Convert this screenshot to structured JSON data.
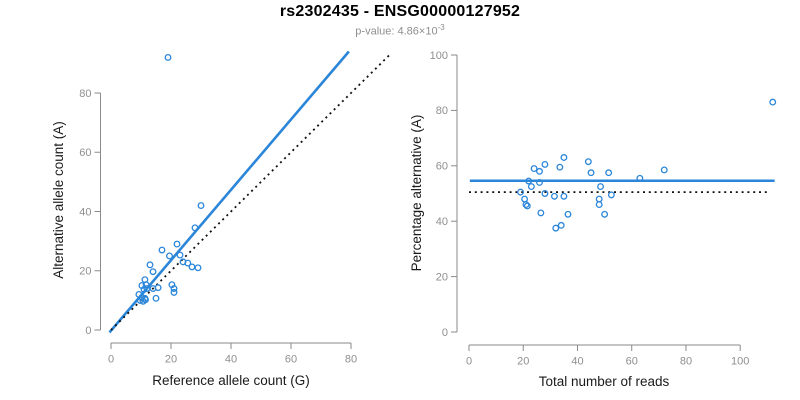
{
  "header": {
    "title": "rs2302435 - ENSG00000127952",
    "pvalue_text": "p-value: 4.86×10",
    "pvalue_exponent": "-3"
  },
  "colors": {
    "blue": "#2b86d9",
    "dotted_black": "#111111",
    "axis_gray": "#8a8a8a",
    "tick_label_gray": "#8f8f8f",
    "axis_title": "#1a1a1a"
  },
  "chart_data": [
    {
      "type": "scatter",
      "panel": "allele-counts",
      "xlabel": "Reference allele count (G)",
      "ylabel": "Alternative allele count (A)",
      "xticks": [
        0,
        20,
        40,
        60,
        80
      ],
      "yticks": [
        0,
        20,
        40,
        60,
        80
      ],
      "xlim": [
        0,
        95
      ],
      "ylim": [
        0,
        95
      ],
      "grid": false,
      "points": [
        [
          19,
          92
        ],
        [
          30,
          42
        ],
        [
          28,
          34.5
        ],
        [
          22,
          29
        ],
        [
          17,
          27
        ],
        [
          19.5,
          25
        ],
        [
          23,
          25.3
        ],
        [
          24,
          23
        ],
        [
          25.6,
          22.6
        ],
        [
          27,
          21.3
        ],
        [
          29,
          21
        ],
        [
          13,
          22
        ],
        [
          14,
          19.7
        ],
        [
          11.3,
          17
        ],
        [
          11.7,
          15.3
        ],
        [
          10.3,
          15
        ],
        [
          11,
          13.7
        ],
        [
          12,
          14
        ],
        [
          15.7,
          14.3
        ],
        [
          14,
          14
        ],
        [
          20.3,
          15.3
        ],
        [
          21,
          14
        ],
        [
          21,
          12.7
        ],
        [
          9.3,
          12
        ],
        [
          10.3,
          11
        ],
        [
          11.3,
          10.7
        ],
        [
          9.7,
          10
        ],
        [
          10.7,
          9.7
        ],
        [
          11.5,
          10.2
        ],
        [
          15,
          10.7
        ]
      ],
      "lines": [
        {
          "name": "fitted-line",
          "style": "solid",
          "color": "blue",
          "points": [
            [
              -0.5,
              -0.8
            ],
            [
              79.3,
              94
            ]
          ]
        },
        {
          "name": "identity-line",
          "style": "dotted",
          "color": "black",
          "points": [
            [
              0,
              0
            ],
            [
              93.5,
              93.5
            ]
          ]
        }
      ]
    },
    {
      "type": "scatter",
      "panel": "percentage-vs-coverage",
      "xlabel": "Total number of reads",
      "ylabel": "Percentage alternative (A)",
      "xticks": [
        0,
        20,
        40,
        60,
        80,
        100
      ],
      "yticks": [
        0,
        20,
        40,
        60,
        80,
        100
      ],
      "xlim": [
        0,
        113
      ],
      "ylim": [
        0,
        100
      ],
      "grid": false,
      "points": [
        [
          112,
          83
        ],
        [
          72,
          58.5
        ],
        [
          63,
          55.5
        ],
        [
          51.5,
          57.5
        ],
        [
          44,
          61.5
        ],
        [
          45,
          57.5
        ],
        [
          35,
          63
        ],
        [
          33.5,
          59.5
        ],
        [
          28,
          60.5
        ],
        [
          24,
          59
        ],
        [
          26,
          58
        ],
        [
          48.5,
          52.5
        ],
        [
          52.5,
          49.5
        ],
        [
          22,
          54.5
        ],
        [
          26,
          54
        ],
        [
          23,
          52.5
        ],
        [
          19,
          50.5
        ],
        [
          28,
          50
        ],
        [
          31.5,
          49
        ],
        [
          35,
          49
        ],
        [
          20.5,
          48
        ],
        [
          48,
          48
        ],
        [
          21,
          46
        ],
        [
          48,
          46
        ],
        [
          21.5,
          45.5
        ],
        [
          26.5,
          43
        ],
        [
          36.5,
          42.5
        ],
        [
          50,
          42.5
        ],
        [
          34,
          38.5
        ],
        [
          32,
          37.5
        ]
      ],
      "lines": [
        {
          "name": "mean-line",
          "style": "solid",
          "color": "blue",
          "points": [
            [
              0.3,
              54.6
            ],
            [
              112.7,
              54.6
            ]
          ]
        },
        {
          "name": "reference-line",
          "style": "dotted",
          "color": "black",
          "points": [
            [
              0,
              50.5
            ],
            [
              110.6,
              50.5
            ]
          ]
        }
      ]
    }
  ]
}
